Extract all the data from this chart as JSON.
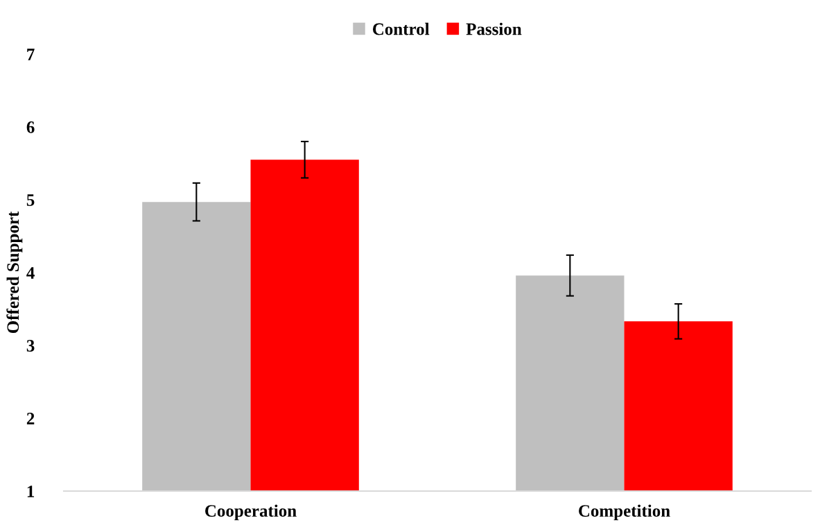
{
  "chart_data": {
    "type": "bar",
    "ylabel": "Offered Support",
    "categories": [
      "Cooperation",
      "Competition"
    ],
    "series": [
      {
        "name": "Control",
        "color": "#bfbfbf",
        "values": [
          4.97,
          3.96
        ],
        "errors": [
          0.26,
          0.28
        ]
      },
      {
        "name": "Passion",
        "color": "#ff0000",
        "values": [
          5.55,
          3.33
        ],
        "errors": [
          0.25,
          0.24
        ]
      }
    ],
    "ylim": [
      1,
      7
    ],
    "yticks": [
      1,
      2,
      3,
      4,
      5,
      6,
      7
    ],
    "grid": false,
    "legend": "top"
  }
}
